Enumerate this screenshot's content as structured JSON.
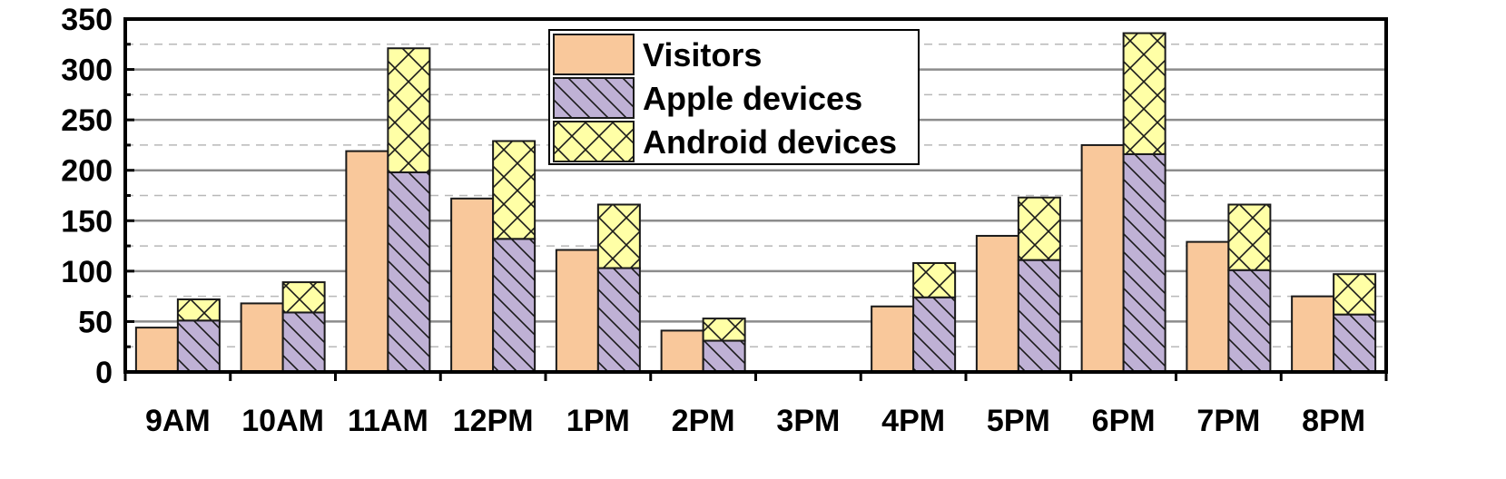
{
  "chart_data": {
    "type": "bar",
    "title": "",
    "xlabel": "",
    "ylabel": "",
    "ylim": [
      0,
      350
    ],
    "yticks": [
      "0",
      "50",
      "100",
      "150",
      "200",
      "250",
      "300",
      "350"
    ],
    "categories": [
      "9AM",
      "10AM",
      "11AM",
      "12PM",
      "1PM",
      "2PM",
      "3PM",
      "4PM",
      "5PM",
      "6PM",
      "7PM",
      "8PM"
    ],
    "series": [
      {
        "name": "Visitors",
        "stack": "a",
        "color": "#f9c89b",
        "pattern": "solid",
        "values": [
          44,
          68,
          219,
          172,
          121,
          41,
          0,
          65,
          135,
          225,
          129,
          75
        ]
      },
      {
        "name": "Apple devices",
        "stack": "b",
        "color": "#bfb1d5",
        "pattern": "diagonal",
        "values": [
          51,
          59,
          198,
          132,
          103,
          31,
          0,
          74,
          111,
          216,
          101,
          57
        ]
      },
      {
        "name": "Android devices",
        "stack": "b",
        "color": "#ffffa6",
        "pattern": "crosshatch",
        "values": [
          21,
          30,
          123,
          97,
          63,
          22,
          0,
          34,
          62,
          120,
          65,
          40
        ]
      }
    ],
    "grid": true,
    "legend": "top-center"
  }
}
